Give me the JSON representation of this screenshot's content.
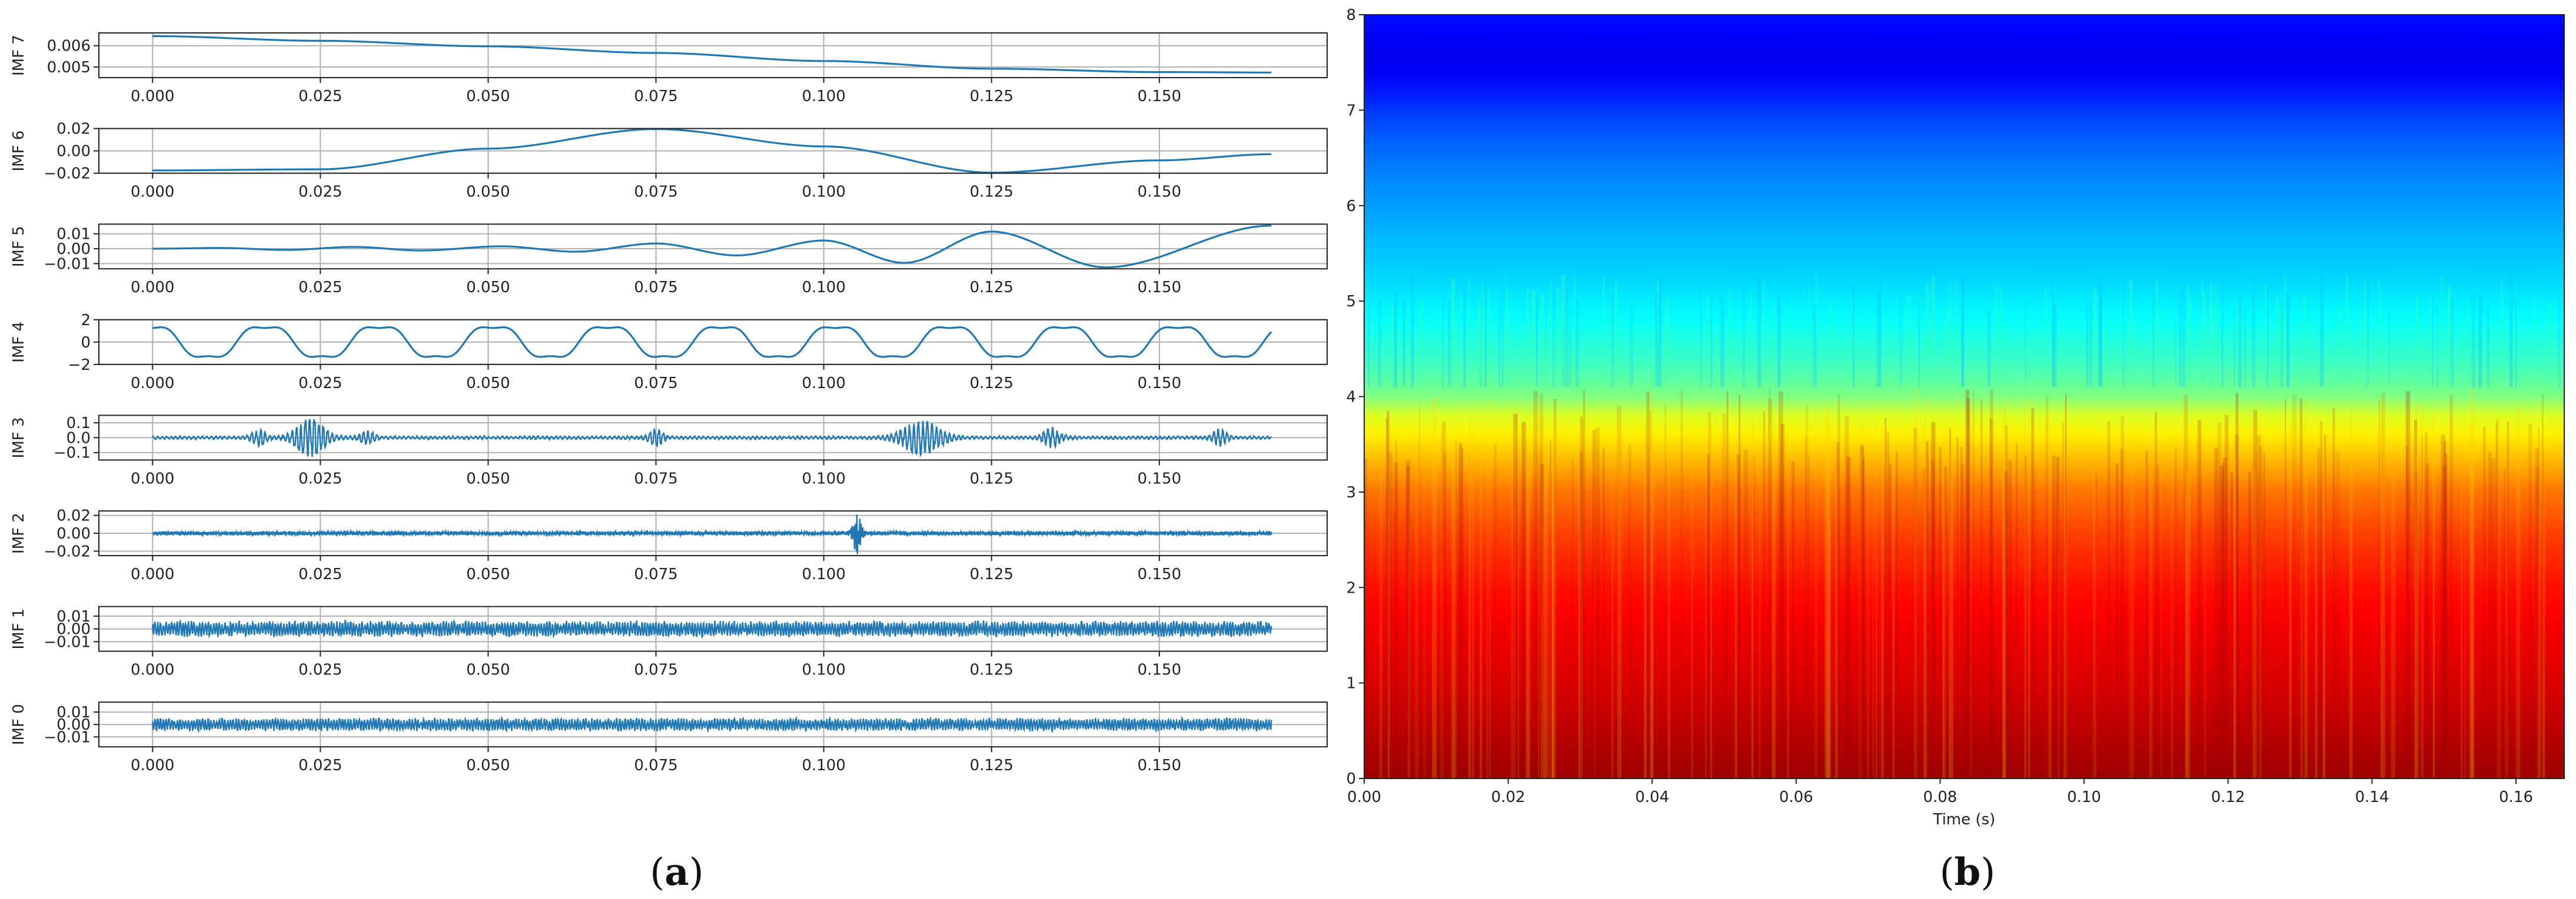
{
  "chart_data": [
    {
      "type": "line",
      "panel_caption": "a",
      "x_ticks": [
        "0.000",
        "0.025",
        "0.050",
        "0.075",
        "0.100",
        "0.125",
        "0.150"
      ],
      "x_tick_values": [
        0.0,
        0.025,
        0.05,
        0.075,
        0.1,
        0.125,
        0.15
      ],
      "xlim": [
        -0.008,
        0.175
      ],
      "x_range": [
        0.0,
        0.1667
      ],
      "color": "#1f77b4",
      "grid": true,
      "series": [
        {
          "name": "IMF 7",
          "ylabel": "IMF 7",
          "ylim": [
            0.0045,
            0.0066
          ],
          "y_ticks": [
            "0.006",
            "0.005"
          ],
          "y_tick_values": [
            0.006,
            0.005
          ],
          "model": "poly",
          "points": [
            [
              0.0,
              0.00645
            ],
            [
              0.025,
              0.00623
            ],
            [
              0.05,
              0.00597
            ],
            [
              0.075,
              0.00566
            ],
            [
              0.1,
              0.00528
            ],
            [
              0.125,
              0.00492
            ],
            [
              0.15,
              0.00476
            ],
            [
              0.1667,
              0.00474
            ]
          ]
        },
        {
          "name": "IMF 6",
          "ylabel": "IMF 6",
          "ylim": [
            -0.02,
            0.02
          ],
          "y_ticks": [
            "0.02",
            "0.00",
            "−0.02"
          ],
          "y_tick_values": [
            0.02,
            0.0,
            -0.02
          ],
          "model": "poly",
          "points": [
            [
              0.0,
              -0.0175
            ],
            [
              0.025,
              -0.0165
            ],
            [
              0.05,
              0.002
            ],
            [
              0.075,
              0.0195
            ],
            [
              0.1,
              0.004
            ],
            [
              0.125,
              -0.0195
            ],
            [
              0.15,
              -0.0085
            ],
            [
              0.1667,
              -0.003
            ]
          ]
        },
        {
          "name": "IMF 5",
          "ylabel": "IMF 5",
          "ylim": [
            -0.0135,
            0.0165
          ],
          "y_ticks": [
            "0.01",
            "0.00",
            "−0.01"
          ],
          "y_tick_values": [
            0.01,
            0.0,
            -0.01
          ],
          "model": "poly",
          "points": [
            [
              0.0,
              0.0
            ],
            [
              0.01,
              0.0005
            ],
            [
              0.02,
              -0.0008
            ],
            [
              0.03,
              0.0012
            ],
            [
              0.04,
              -0.0012
            ],
            [
              0.052,
              0.0016
            ],
            [
              0.063,
              -0.002
            ],
            [
              0.075,
              0.0035
            ],
            [
              0.087,
              -0.0045
            ],
            [
              0.1,
              0.0055
            ],
            [
              0.112,
              -0.0095
            ],
            [
              0.125,
              0.0115
            ],
            [
              0.142,
              -0.0125
            ],
            [
              0.1667,
              0.0155
            ]
          ]
        },
        {
          "name": "IMF 4",
          "ylabel": "IMF 4",
          "ylim": [
            -2.0,
            2.0
          ],
          "y_ticks": [
            "2",
            "0",
            "−2"
          ],
          "y_tick_values": [
            2,
            0,
            -2
          ],
          "model": "sine",
          "amp": 1.8,
          "period": 0.017,
          "phase": 0.0045
        },
        {
          "name": "IMF 3",
          "ylabel": "IMF 3",
          "ylim": [
            -0.15,
            0.15
          ],
          "y_ticks": [
            "0.1",
            "0.0",
            "−0.1"
          ],
          "y_tick_values": [
            0.1,
            0.0,
            -0.1
          ],
          "model": "noise",
          "base": 0.012,
          "freq": 1500,
          "bursts": [
            [
              0.0235,
              0.0025,
              0.12
            ],
            [
              0.0158,
              0.0012,
              0.05
            ],
            [
              0.032,
              0.0012,
              0.04
            ],
            [
              0.075,
              0.0012,
              0.05
            ],
            [
              0.1145,
              0.0032,
              0.11
            ],
            [
              0.134,
              0.0015,
              0.06
            ],
            [
              0.159,
              0.0012,
              0.05
            ]
          ]
        },
        {
          "name": "IMF 2",
          "ylabel": "IMF 2",
          "ylim": [
            -0.025,
            0.025
          ],
          "y_ticks": [
            "0.02",
            "0.00",
            "−0.02"
          ],
          "y_tick_values": [
            0.02,
            0.0,
            -0.02
          ],
          "model": "noise",
          "base": 0.0025,
          "freq": 4500,
          "bursts": [
            [
              0.105,
              0.0007,
              0.022
            ]
          ]
        },
        {
          "name": "IMF 1",
          "ylabel": "IMF 1",
          "ylim": [
            -0.0175,
            0.0175
          ],
          "y_ticks": [
            "0.01",
            "0.00",
            "−0.01"
          ],
          "y_tick_values": [
            0.01,
            0.0,
            -0.01
          ],
          "model": "noise",
          "base": 0.0065,
          "freq": 9000,
          "bursts": []
        },
        {
          "name": "IMF 0",
          "ylabel": "IMF 0",
          "ylim": [
            -0.018,
            0.018
          ],
          "y_ticks": [
            "0.01",
            "0.00",
            "−0.01"
          ],
          "y_tick_values": [
            0.01,
            0.0,
            -0.01
          ],
          "model": "noise",
          "base": 0.0055,
          "freq": 9000,
          "bursts": []
        }
      ]
    },
    {
      "type": "heatmap",
      "panel_caption": "b",
      "colormap": "jet",
      "xlim": [
        0.0,
        0.1667
      ],
      "ylim": [
        0,
        8
      ],
      "x_ticks": [
        "0.00",
        "0.02",
        "0.04",
        "0.06",
        "0.08",
        "0.10",
        "0.12",
        "0.14",
        "0.16"
      ],
      "x_tick_values": [
        0.0,
        0.02,
        0.04,
        0.06,
        0.08,
        0.1,
        0.12,
        0.14,
        0.16
      ],
      "y_ticks": [
        "0",
        "1",
        "2",
        "3",
        "4",
        "5",
        "6",
        "7",
        "8"
      ],
      "y_tick_values": [
        0,
        1,
        2,
        3,
        4,
        5,
        6,
        7,
        8
      ],
      "xlabel": "Time (s)",
      "ylabel": "",
      "intensity_profile": [
        [
          0.0,
          0.97
        ],
        [
          0.5,
          0.94
        ],
        [
          1.0,
          0.91
        ],
        [
          1.5,
          0.89
        ],
        [
          2.0,
          0.86
        ],
        [
          2.5,
          0.82
        ],
        [
          3.0,
          0.76
        ],
        [
          3.3,
          0.7
        ],
        [
          3.6,
          0.64
        ],
        [
          3.85,
          0.58
        ],
        [
          4.0,
          0.5
        ],
        [
          4.3,
          0.44
        ],
        [
          4.8,
          0.38
        ],
        [
          5.2,
          0.34
        ],
        [
          5.6,
          0.31
        ],
        [
          6.0,
          0.28
        ],
        [
          6.5,
          0.24
        ],
        [
          7.0,
          0.18
        ],
        [
          7.5,
          0.1
        ],
        [
          8.0,
          0.14
        ]
      ]
    }
  ]
}
